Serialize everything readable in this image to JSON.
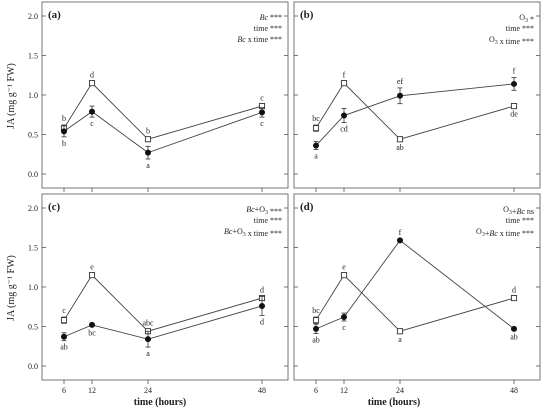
{
  "figure": {
    "ylabel": "JA (mg g⁻¹ FW)",
    "xlabel": "time (hours)"
  },
  "chart_data": [
    {
      "panel": "(a)",
      "type": "line",
      "x": [
        6,
        12,
        24,
        48
      ],
      "xticks": [
        "6",
        "12",
        "24",
        "48"
      ],
      "ylim": [
        0,
        2.0
      ],
      "yticks": [
        "0.0",
        "0.5",
        "1.0",
        "1.5",
        "2.0"
      ],
      "stats": [
        "Bc ***",
        "time ***",
        "Bc x time ***"
      ],
      "series": [
        {
          "marker": "open-square",
          "values": [
            0.58,
            1.15,
            0.44,
            0.86
          ],
          "errors": [
            0.04,
            0.02,
            0.02,
            0.02
          ],
          "letters": [
            "b",
            "d",
            "b",
            "c"
          ]
        },
        {
          "marker": "filled-circle",
          "values": [
            0.54,
            0.79,
            0.27,
            0.78
          ],
          "errors": [
            0.07,
            0.07,
            0.08,
            0.06
          ],
          "letters": [
            "b",
            "c",
            "a",
            "c"
          ]
        }
      ]
    },
    {
      "panel": "(b)",
      "type": "line",
      "x": [
        6,
        12,
        24,
        48
      ],
      "xticks": [
        "6",
        "12",
        "24",
        "48"
      ],
      "ylim": [
        0,
        2.0
      ],
      "yticks": [],
      "stats": [
        "O3 *",
        "time ***",
        "O3 x time ***"
      ],
      "series": [
        {
          "marker": "open-square",
          "values": [
            0.58,
            1.15,
            0.44,
            0.86
          ],
          "errors": [
            0.04,
            0.02,
            0.02,
            0.02
          ],
          "letters": [
            "bc",
            "f",
            "ab",
            "de"
          ]
        },
        {
          "marker": "filled-circle",
          "values": [
            0.36,
            0.74,
            0.99,
            1.14
          ],
          "errors": [
            0.05,
            0.09,
            0.1,
            0.08
          ],
          "letters": [
            "a",
            "cd",
            "ef",
            "f"
          ]
        }
      ]
    },
    {
      "panel": "(c)",
      "type": "line",
      "x": [
        6,
        12,
        24,
        48
      ],
      "xticks": [
        "6",
        "12",
        "24",
        "48"
      ],
      "ylim": [
        0,
        2.0
      ],
      "yticks": [
        "0.0",
        "0.5",
        "1.0",
        "1.5",
        "2.0"
      ],
      "stats": [
        "Bc+O3 ***",
        "time ***",
        "Bc+O3 x time ***"
      ],
      "series": [
        {
          "marker": "open-square",
          "values": [
            0.58,
            1.15,
            0.44,
            0.86
          ],
          "errors": [
            0.04,
            0.02,
            0.02,
            0.02
          ],
          "letters": [
            "c",
            "e",
            "abc",
            "d"
          ]
        },
        {
          "marker": "filled-circle",
          "values": [
            0.37,
            0.52,
            0.34,
            0.76
          ],
          "errors": [
            0.05,
            0.02,
            0.1,
            0.12
          ],
          "letters": [
            "ab",
            "bc",
            "a",
            "d"
          ]
        }
      ]
    },
    {
      "panel": "(d)",
      "type": "line",
      "x": [
        6,
        12,
        24,
        48
      ],
      "xticks": [
        "6",
        "12",
        "24",
        "48"
      ],
      "ylim": [
        0,
        2.0
      ],
      "yticks": [],
      "stats": [
        "O3+Bc ns",
        "time ***",
        "O3+Bc x time ***"
      ],
      "series": [
        {
          "marker": "open-square",
          "values": [
            0.58,
            1.15,
            0.44,
            0.86
          ],
          "errors": [
            0.04,
            0.02,
            0.02,
            0.02
          ],
          "letters": [
            "bc",
            "e",
            "a",
            "d"
          ]
        },
        {
          "marker": "filled-circle",
          "values": [
            0.47,
            0.62,
            1.59,
            0.47
          ],
          "errors": [
            0.06,
            0.05,
            0.02,
            0.02
          ],
          "letters": [
            "ab",
            "c",
            "f",
            "ab"
          ]
        }
      ]
    }
  ]
}
